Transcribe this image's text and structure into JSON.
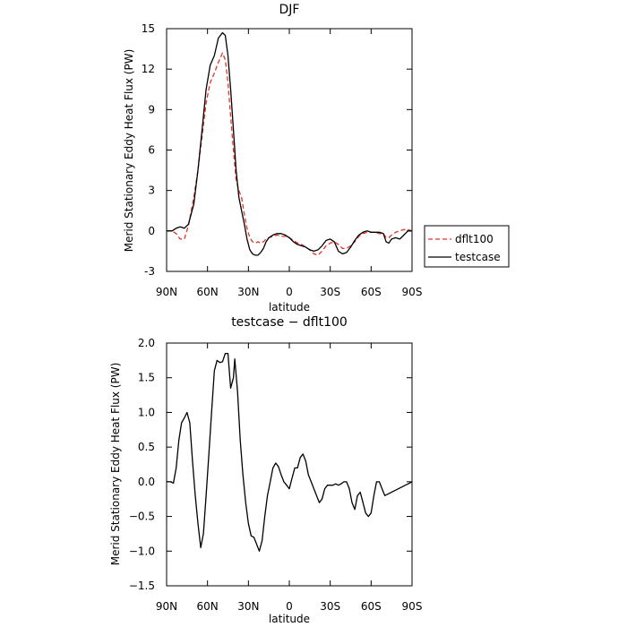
{
  "chart_data": [
    {
      "type": "line",
      "title": "DJF",
      "xlabel": "latitude",
      "ylabel": "Merid Stationary Eddy Heat Flux (PW)",
      "xlim": [
        90,
        -90
      ],
      "ylim": [
        -3,
        15
      ],
      "xticks": [
        90,
        60,
        30,
        0,
        -30,
        -60,
        -90
      ],
      "xtick_labels": [
        "90N",
        "60N",
        "30N",
        "0",
        "30S",
        "60S",
        "90S"
      ],
      "yticks": [
        -3,
        0,
        3,
        6,
        9,
        12,
        15
      ],
      "ytick_labels": [
        "-3",
        "0",
        "3",
        "6",
        "9",
        "12",
        "15"
      ],
      "legend_position": "right",
      "series": [
        {
          "name": "dflt100",
          "color": "#e8302a",
          "dash": "dashed",
          "points": [
            [
              90,
              0.0
            ],
            [
              86,
              0.0
            ],
            [
              83,
              -0.2
            ],
            [
              80,
              -0.6
            ],
            [
              77,
              -0.6
            ],
            [
              74,
              0.4
            ],
            [
              70,
              2.5
            ],
            [
              67,
              4.5
            ],
            [
              64,
              7.0
            ],
            [
              61,
              9.5
            ],
            [
              58,
              11.0
            ],
            [
              55,
              11.7
            ],
            [
              52,
              12.5
            ],
            [
              49,
              13.2
            ],
            [
              47,
              12.7
            ],
            [
              45,
              11.0
            ],
            [
              43,
              8.5
            ],
            [
              41,
              6.0
            ],
            [
              39,
              3.8
            ],
            [
              37,
              3.0
            ],
            [
              35,
              2.5
            ],
            [
              33,
              1.2
            ],
            [
              31,
              0.2
            ],
            [
              29,
              -0.5
            ],
            [
              27,
              -0.8
            ],
            [
              25,
              -0.9
            ],
            [
              23,
              -0.8
            ],
            [
              21,
              -0.9
            ],
            [
              19,
              -0.8
            ],
            [
              17,
              -0.6
            ],
            [
              15,
              -0.5
            ],
            [
              12,
              -0.4
            ],
            [
              9,
              -0.3
            ],
            [
              6,
              -0.4
            ],
            [
              3,
              -0.4
            ],
            [
              0,
              -0.5
            ],
            [
              -3,
              -0.7
            ],
            [
              -6,
              -0.9
            ],
            [
              -9,
              -1.0
            ],
            [
              -12,
              -1.2
            ],
            [
              -15,
              -1.4
            ],
            [
              -18,
              -1.7
            ],
            [
              -21,
              -1.8
            ],
            [
              -24,
              -1.5
            ],
            [
              -27,
              -1.1
            ],
            [
              -30,
              -0.9
            ],
            [
              -33,
              -0.8
            ],
            [
              -36,
              -1.0
            ],
            [
              -39,
              -1.3
            ],
            [
              -42,
              -1.3
            ],
            [
              -45,
              -1.1
            ],
            [
              -48,
              -0.8
            ],
            [
              -51,
              -0.4
            ],
            [
              -54,
              -0.2
            ],
            [
              -57,
              -0.1
            ],
            [
              -60,
              -0.1
            ],
            [
              -63,
              -0.1
            ],
            [
              -66,
              -0.2
            ],
            [
              -69,
              -0.2
            ],
            [
              -71,
              -0.5
            ],
            [
              -73,
              -0.5
            ],
            [
              -75,
              -0.3
            ],
            [
              -78,
              -0.1
            ],
            [
              -81,
              0.0
            ],
            [
              -84,
              0.1
            ],
            [
              -87,
              0.1
            ],
            [
              -90,
              0.0
            ]
          ]
        },
        {
          "name": "testcase",
          "color": "#000000",
          "dash": "solid",
          "points": [
            [
              90,
              0.0
            ],
            [
              86,
              0.0
            ],
            [
              83,
              0.2
            ],
            [
              80,
              0.3
            ],
            [
              77,
              0.2
            ],
            [
              74,
              0.5
            ],
            [
              70,
              2.0
            ],
            [
              67,
              4.5
            ],
            [
              64,
              7.5
            ],
            [
              61,
              10.5
            ],
            [
              58,
              12.3
            ],
            [
              55,
              13.0
            ],
            [
              52,
              14.3
            ],
            [
              49,
              14.7
            ],
            [
              47,
              14.5
            ],
            [
              45,
              13.0
            ],
            [
              43,
              10.5
            ],
            [
              41,
              7.5
            ],
            [
              39,
              4.5
            ],
            [
              37,
              2.5
            ],
            [
              35,
              1.5
            ],
            [
              33,
              0.5
            ],
            [
              31,
              -0.6
            ],
            [
              29,
              -1.4
            ],
            [
              27,
              -1.7
            ],
            [
              25,
              -1.8
            ],
            [
              23,
              -1.8
            ],
            [
              21,
              -1.6
            ],
            [
              19,
              -1.3
            ],
            [
              17,
              -0.8
            ],
            [
              15,
              -0.5
            ],
            [
              12,
              -0.3
            ],
            [
              9,
              -0.2
            ],
            [
              6,
              -0.2
            ],
            [
              3,
              -0.3
            ],
            [
              0,
              -0.5
            ],
            [
              -3,
              -0.8
            ],
            [
              -6,
              -1.0
            ],
            [
              -9,
              -1.1
            ],
            [
              -12,
              -1.2
            ],
            [
              -15,
              -1.4
            ],
            [
              -18,
              -1.5
            ],
            [
              -21,
              -1.4
            ],
            [
              -24,
              -1.1
            ],
            [
              -27,
              -0.7
            ],
            [
              -30,
              -0.6
            ],
            [
              -33,
              -0.8
            ],
            [
              -36,
              -1.5
            ],
            [
              -39,
              -1.7
            ],
            [
              -42,
              -1.6
            ],
            [
              -45,
              -1.2
            ],
            [
              -48,
              -0.7
            ],
            [
              -51,
              -0.3
            ],
            [
              -54,
              -0.1
            ],
            [
              -57,
              0.0
            ],
            [
              -60,
              -0.1
            ],
            [
              -63,
              -0.1
            ],
            [
              -66,
              -0.1
            ],
            [
              -69,
              -0.2
            ],
            [
              -71,
              -0.8
            ],
            [
              -73,
              -0.9
            ],
            [
              -75,
              -0.6
            ],
            [
              -78,
              -0.5
            ],
            [
              -81,
              -0.6
            ],
            [
              -84,
              -0.3
            ],
            [
              -87,
              0.0
            ],
            [
              -90,
              0.0
            ]
          ]
        }
      ]
    },
    {
      "type": "line",
      "title": "testcase − dflt100",
      "xlabel": "latitude",
      "ylabel": "Merid Stationary Eddy Heat Flux (PW)",
      "xlim": [
        90,
        -90
      ],
      "ylim": [
        -1.5,
        2.0
      ],
      "xticks": [
        90,
        60,
        30,
        0,
        -30,
        -60,
        -90
      ],
      "xtick_labels": [
        "90N",
        "60N",
        "30N",
        "0",
        "30S",
        "60S",
        "90S"
      ],
      "yticks": [
        -1.5,
        -1.0,
        -0.5,
        0.0,
        0.5,
        1.0,
        1.5,
        2.0
      ],
      "ytick_labels": [
        "−1.5",
        "−1.0",
        "−0.5",
        "0.0",
        "0.5",
        "1.0",
        "1.5",
        "2.0"
      ],
      "series": [
        {
          "color": "#000000",
          "dash": "solid",
          "points": [
            [
              90,
              0.0
            ],
            [
              87,
              0.0
            ],
            [
              85,
              -0.02
            ],
            [
              83,
              0.2
            ],
            [
              81,
              0.6
            ],
            [
              79,
              0.85
            ],
            [
              77,
              0.92
            ],
            [
              75,
              1.0
            ],
            [
              73,
              0.85
            ],
            [
              71,
              0.3
            ],
            [
              69,
              -0.2
            ],
            [
              67,
              -0.6
            ],
            [
              65,
              -0.95
            ],
            [
              63,
              -0.75
            ],
            [
              61,
              -0.2
            ],
            [
              59,
              0.4
            ],
            [
              57,
              1.0
            ],
            [
              55,
              1.6
            ],
            [
              53,
              1.75
            ],
            [
              51,
              1.72
            ],
            [
              49,
              1.73
            ],
            [
              47,
              1.85
            ],
            [
              45,
              1.85
            ],
            [
              43,
              1.35
            ],
            [
              41,
              1.5
            ],
            [
              40,
              1.77
            ],
            [
              38,
              1.3
            ],
            [
              36,
              0.6
            ],
            [
              34,
              0.1
            ],
            [
              32,
              -0.3
            ],
            [
              30,
              -0.6
            ],
            [
              28,
              -0.78
            ],
            [
              26,
              -0.8
            ],
            [
              24,
              -0.9
            ],
            [
              22,
              -1.0
            ],
            [
              20,
              -0.85
            ],
            [
              18,
              -0.5
            ],
            [
              16,
              -0.2
            ],
            [
              14,
              0.0
            ],
            [
              12,
              0.2
            ],
            [
              10,
              0.27
            ],
            [
              8,
              0.22
            ],
            [
              6,
              0.1
            ],
            [
              4,
              0.0
            ],
            [
              2,
              -0.05
            ],
            [
              0,
              -0.1
            ],
            [
              -2,
              0.05
            ],
            [
              -4,
              0.2
            ],
            [
              -6,
              0.2
            ],
            [
              -8,
              0.35
            ],
            [
              -10,
              0.4
            ],
            [
              -12,
              0.3
            ],
            [
              -14,
              0.1
            ],
            [
              -16,
              0.0
            ],
            [
              -18,
              -0.1
            ],
            [
              -20,
              -0.2
            ],
            [
              -22,
              -0.3
            ],
            [
              -24,
              -0.25
            ],
            [
              -26,
              -0.1
            ],
            [
              -28,
              -0.05
            ],
            [
              -30,
              -0.05
            ],
            [
              -32,
              -0.05
            ],
            [
              -34,
              -0.03
            ],
            [
              -36,
              -0.05
            ],
            [
              -38,
              -0.03
            ],
            [
              -40,
              0.0
            ],
            [
              -42,
              0.0
            ],
            [
              -44,
              -0.1
            ],
            [
              -46,
              -0.3
            ],
            [
              -48,
              -0.4
            ],
            [
              -50,
              -0.2
            ],
            [
              -52,
              -0.15
            ],
            [
              -54,
              -0.3
            ],
            [
              -56,
              -0.45
            ],
            [
              -58,
              -0.5
            ],
            [
              -60,
              -0.45
            ],
            [
              -62,
              -0.2
            ],
            [
              -64,
              0.0
            ],
            [
              -66,
              0.0
            ],
            [
              -68,
              -0.1
            ],
            [
              -70,
              -0.2
            ],
            [
              -90,
              0.0
            ]
          ]
        }
      ]
    }
  ]
}
